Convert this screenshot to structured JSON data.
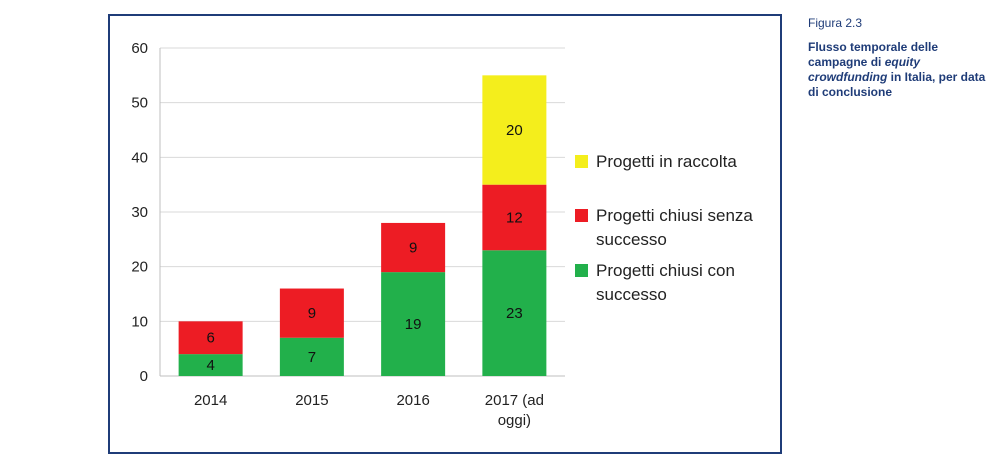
{
  "figure": {
    "label": "Figura 2.3",
    "title_part1": "Flusso temporale delle campagne di ",
    "title_italic": "equity crowdfunding",
    "title_part2": " in Italia, per data di conclusione"
  },
  "colors": {
    "success": "#22b04b",
    "fail": "#ed1c24",
    "open": "#f4ee1c",
    "frame": "#1f3c78"
  },
  "chart_data": {
    "type": "bar",
    "stacked": true,
    "categories": [
      "2014",
      "2015",
      "2016",
      "2017 (ad oggi)"
    ],
    "category_lines": [
      [
        "2014"
      ],
      [
        "2015"
      ],
      [
        "2016"
      ],
      [
        "2017 (ad",
        "oggi)"
      ]
    ],
    "ylim": [
      0,
      60
    ],
    "yticks": [
      0,
      10,
      20,
      30,
      40,
      50,
      60
    ],
    "grid": true,
    "legend_position": "right",
    "series": [
      {
        "name": "Progetti chiusi con successo",
        "legend_lines": [
          "Progetti chiusi con",
          "successo"
        ],
        "color": "#22b04b",
        "values": [
          4,
          7,
          19,
          23
        ]
      },
      {
        "name": "Progetti chiusi senza successo",
        "legend_lines": [
          "Progetti chiusi senza",
          "successo"
        ],
        "color": "#ed1c24",
        "values": [
          6,
          9,
          9,
          12
        ]
      },
      {
        "name": "Progetti in raccolta",
        "legend_lines": [
          "Progetti in raccolta"
        ],
        "color": "#f4ee1c",
        "values": [
          0,
          0,
          0,
          20
        ]
      }
    ]
  }
}
